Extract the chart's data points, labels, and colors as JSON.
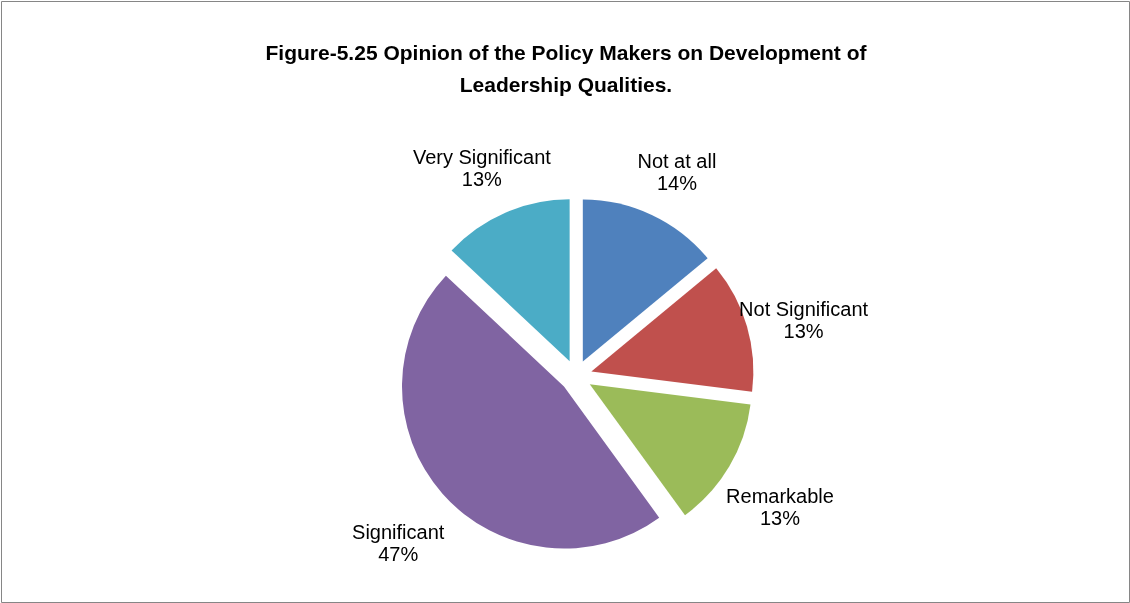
{
  "chart_data": {
    "type": "pie",
    "title": "Figure-5.25 Opinion of the Policy Makers on Development of Leadership Qualities.",
    "categories": [
      "Not at all",
      "Not Significant",
      "Remarkable",
      "Significant",
      "Very Significant"
    ],
    "values": [
      14,
      13,
      13,
      47,
      13
    ],
    "value_labels": [
      "14%",
      "13%",
      "13%",
      "47%",
      "13%"
    ],
    "colors": [
      "#4f81bd",
      "#c0504d",
      "#9bbb59",
      "#8064a2",
      "#4bacc6"
    ]
  }
}
